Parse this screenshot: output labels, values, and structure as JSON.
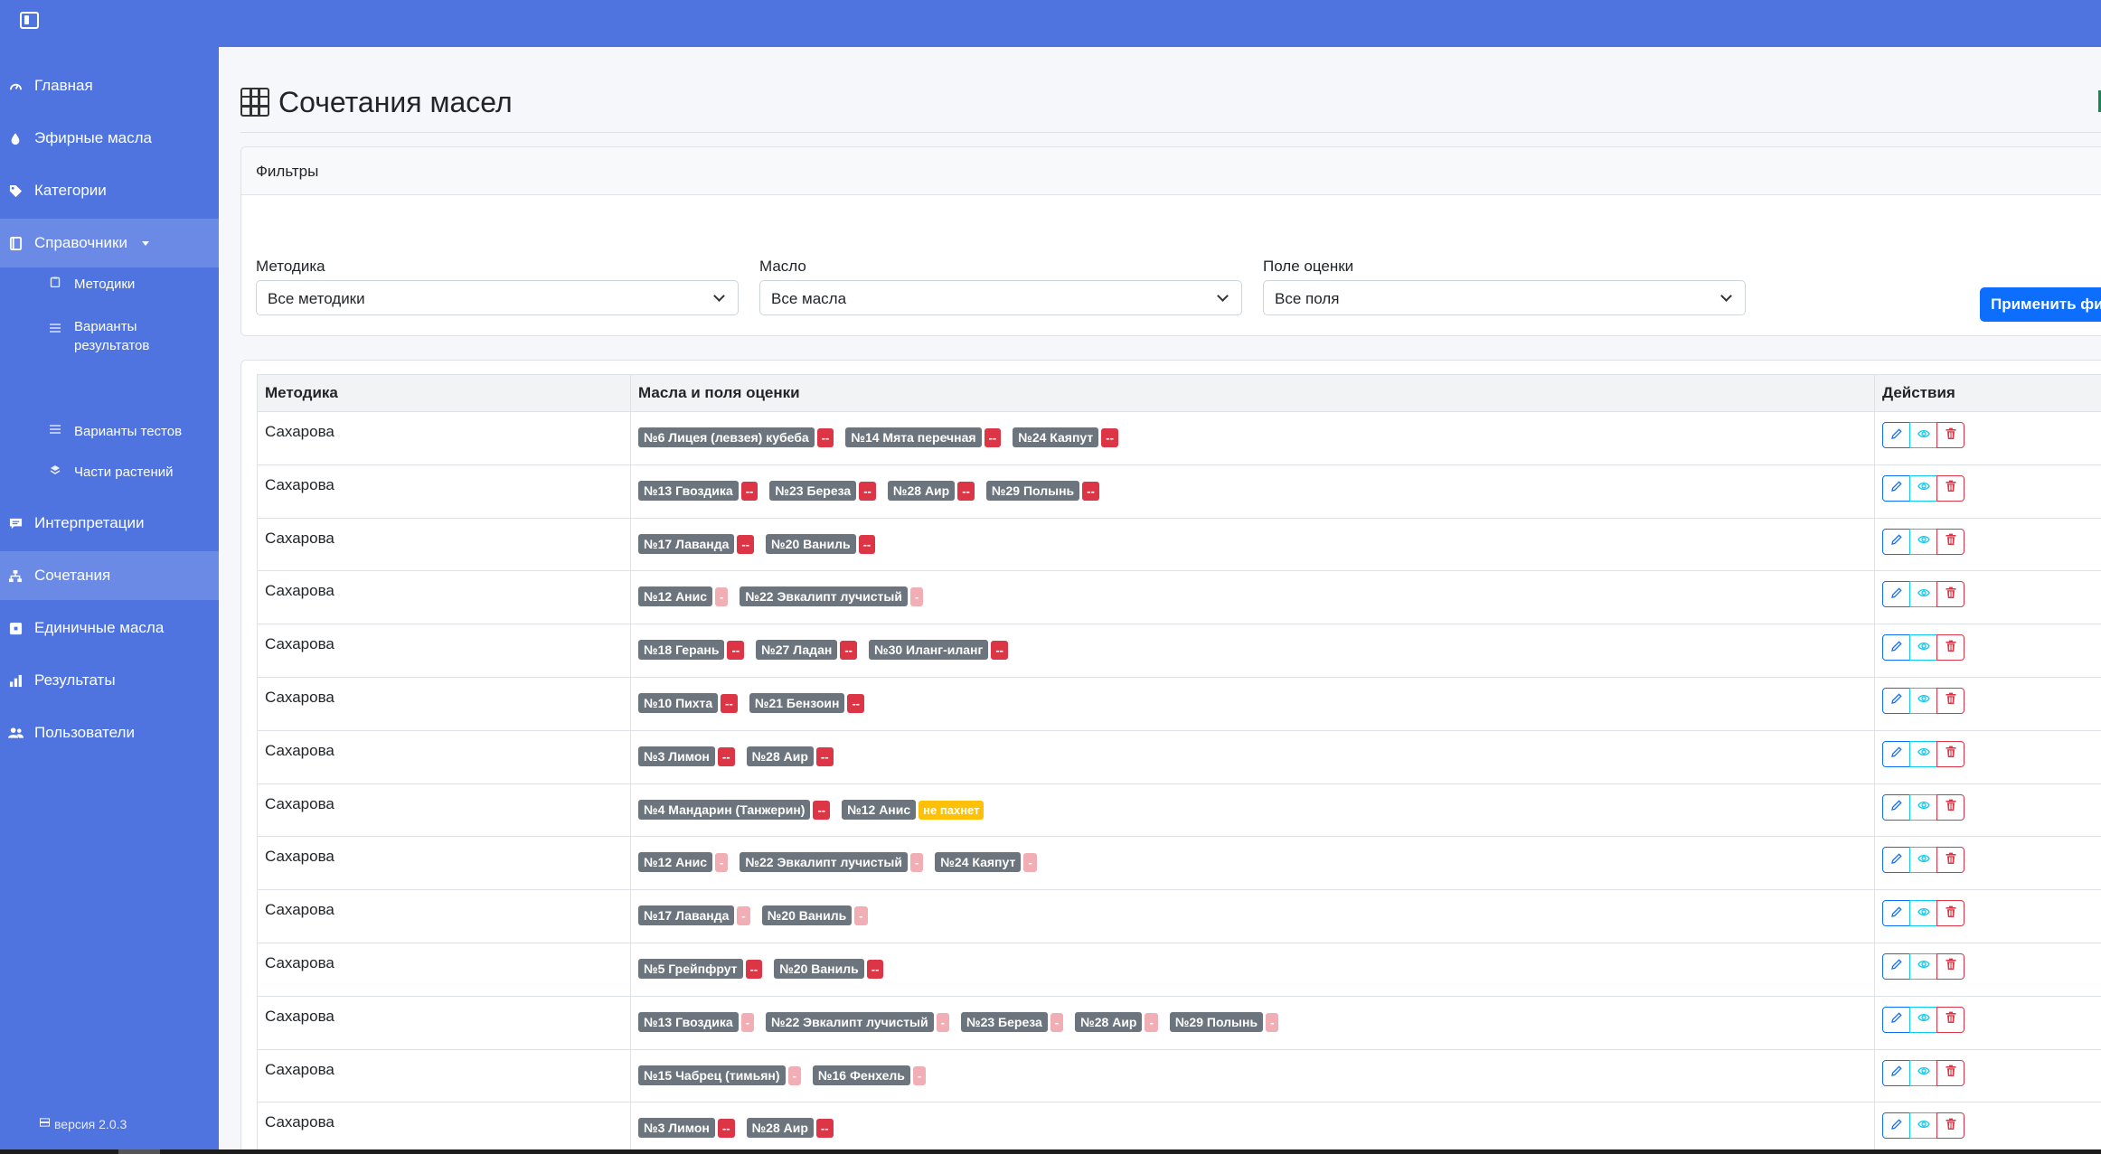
{
  "sidebar": {
    "items": [
      {
        "label": "Главная",
        "icon": "dashboard-icon"
      },
      {
        "label": "Эфирные масла",
        "icon": "droplet-icon"
      },
      {
        "label": "Категории",
        "icon": "tag-icon"
      },
      {
        "label": "Справочники",
        "icon": "book-icon"
      },
      {
        "label": "Интерпретации",
        "icon": "comment-icon"
      },
      {
        "label": "Сочетания",
        "icon": "sitemap-icon"
      },
      {
        "label": "Единичные масла",
        "icon": "square-icon"
      },
      {
        "label": "Результаты",
        "icon": "bar-chart-icon"
      },
      {
        "label": "Пользователи",
        "icon": "users-icon"
      }
    ],
    "subitems": [
      {
        "label": "Методики",
        "icon": "clipboard-icon"
      },
      {
        "label": "Варианты результатов",
        "icon": "list-icon"
      },
      {
        "label": "Варианты тестов",
        "icon": "list-icon"
      },
      {
        "label": "Части растений",
        "icon": "layers-icon"
      }
    ],
    "version": "версия 2.0.3"
  },
  "page": {
    "title": "Сочетания масел"
  },
  "filters": {
    "header": "Фильтры",
    "method_label": "Методика",
    "method_value": "Все методики",
    "oil_label": "Масло",
    "oil_value": "Все масла",
    "field_label": "Поле оценки",
    "field_value": "Все поля",
    "apply_label": "Применить фил"
  },
  "table": {
    "headers": [
      "Методика",
      "Масла и поля оценки",
      "Действия"
    ],
    "rows": [
      {
        "method": "Сахарова",
        "pairs": [
          {
            "oil": "№6 Лицея (левзея) кубеба",
            "score": "--",
            "tone": "dark"
          },
          {
            "oil": "№14 Мята перечная",
            "score": "--",
            "tone": "dark"
          },
          {
            "oil": "№24 Каяпут",
            "score": "--",
            "tone": "dark"
          }
        ]
      },
      {
        "method": "Сахарова",
        "pairs": [
          {
            "oil": "№13 Гвоздика",
            "score": "--",
            "tone": "dark"
          },
          {
            "oil": "№23 Береза",
            "score": "--",
            "tone": "dark"
          },
          {
            "oil": "№28 Аир",
            "score": "--",
            "tone": "dark"
          },
          {
            "oil": "№29 Полынь",
            "score": "--",
            "tone": "dark"
          }
        ]
      },
      {
        "method": "Сахарова",
        "pairs": [
          {
            "oil": "№17 Лаванда",
            "score": "--",
            "tone": "dark"
          },
          {
            "oil": "№20 Ваниль",
            "score": "--",
            "tone": "dark"
          }
        ]
      },
      {
        "method": "Сахарова",
        "pairs": [
          {
            "oil": "№12 Анис",
            "score": "-",
            "tone": "light"
          },
          {
            "oil": "№22 Эвкалипт лучистый",
            "score": "-",
            "tone": "light"
          }
        ]
      },
      {
        "method": "Сахарова",
        "pairs": [
          {
            "oil": "№18 Герань",
            "score": "--",
            "tone": "dark"
          },
          {
            "oil": "№27 Ладан",
            "score": "--",
            "tone": "dark"
          },
          {
            "oil": "№30 Иланг-иланг",
            "score": "--",
            "tone": "dark"
          }
        ]
      },
      {
        "method": "Сахарова",
        "pairs": [
          {
            "oil": "№10 Пихта",
            "score": "--",
            "tone": "dark"
          },
          {
            "oil": "№21 Бензоин",
            "score": "--",
            "tone": "dark"
          }
        ]
      },
      {
        "method": "Сахарова",
        "pairs": [
          {
            "oil": "№3 Лимон",
            "score": "--",
            "tone": "dark"
          },
          {
            "oil": "№28 Аир",
            "score": "--",
            "tone": "dark"
          }
        ]
      },
      {
        "method": "Сахарова",
        "pairs": [
          {
            "oil": "№4 Мандарин (Танжерин)",
            "score": "--",
            "tone": "dark"
          },
          {
            "oil": "№12 Анис",
            "score": "не пахнет",
            "tone": "yellow"
          }
        ]
      },
      {
        "method": "Сахарова",
        "pairs": [
          {
            "oil": "№12 Анис",
            "score": "-",
            "tone": "light"
          },
          {
            "oil": "№22 Эвкалипт лучистый",
            "score": "-",
            "tone": "light"
          },
          {
            "oil": "№24 Каяпут",
            "score": "-",
            "tone": "light"
          }
        ]
      },
      {
        "method": "Сахарова",
        "pairs": [
          {
            "oil": "№17 Лаванда",
            "score": "-",
            "tone": "light"
          },
          {
            "oil": "№20 Ваниль",
            "score": "-",
            "tone": "light"
          }
        ]
      },
      {
        "method": "Сахарова",
        "pairs": [
          {
            "oil": "№5 Грейпфрут",
            "score": "--",
            "tone": "dark"
          },
          {
            "oil": "№20 Ваниль",
            "score": "--",
            "tone": "dark"
          }
        ]
      },
      {
        "method": "Сахарова",
        "pairs": [
          {
            "oil": "№13 Гвоздика",
            "score": "-",
            "tone": "light"
          },
          {
            "oil": "№22 Эвкалипт лучистый",
            "score": "-",
            "tone": "light"
          },
          {
            "oil": "№23 Береза",
            "score": "-",
            "tone": "light"
          },
          {
            "oil": "№28 Аир",
            "score": "-",
            "tone": "light"
          },
          {
            "oil": "№29 Полынь",
            "score": "-",
            "tone": "light"
          }
        ]
      },
      {
        "method": "Сахарова",
        "pairs": [
          {
            "oil": "№15 Чабрец (тимьян)",
            "score": "-",
            "tone": "light"
          },
          {
            "oil": "№16 Фенхель",
            "score": "-",
            "tone": "light"
          }
        ]
      },
      {
        "method": "Сахарова",
        "pairs": [
          {
            "oil": "№3 Лимон",
            "score": "--",
            "tone": "dark"
          },
          {
            "oil": "№28 Аир",
            "score": "--",
            "tone": "dark"
          }
        ]
      }
    ]
  },
  "colors": {
    "brand": "#4f74e0",
    "primary": "#0d6efd",
    "info": "#0dcaf0",
    "danger": "#dc3545",
    "danger_light": "#f1aeb5",
    "warning": "#ffc107",
    "secondary": "#6c757d"
  }
}
